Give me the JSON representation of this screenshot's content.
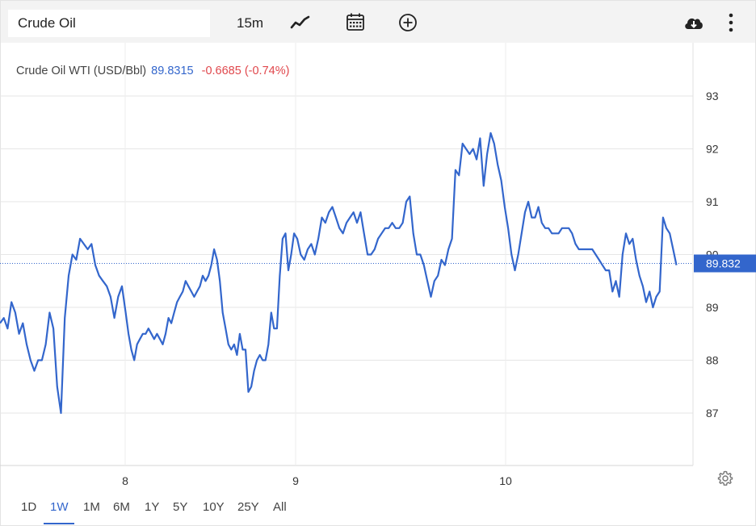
{
  "toolbar": {
    "symbol_value": "Crude Oil",
    "interval_label": "15m",
    "icons": [
      "line-chart-icon",
      "calendar-icon",
      "add-circle-icon",
      "cloud-download-icon",
      "more-vertical-icon"
    ]
  },
  "legend": {
    "name": "Crude Oil WTI (USD/Bbl)",
    "price": "89.8315",
    "change": "-0.6685 (-0.74%)"
  },
  "colors": {
    "line": "#3366cc",
    "negative": "#e0474c",
    "grid": "#e6e6e6"
  },
  "price_tag": "89.832",
  "range_tabs": {
    "items": [
      "1D",
      "1W",
      "1M",
      "6M",
      "1Y",
      "5Y",
      "10Y",
      "25Y",
      "All"
    ],
    "active": "1W"
  },
  "settings_icon": "gear-icon",
  "chart_data": {
    "type": "line",
    "title": "Crude Oil WTI (USD/Bbl)",
    "x_ticks": [
      "8",
      "9",
      "10"
    ],
    "y_ticks": [
      87,
      88,
      89,
      90,
      91,
      92,
      93
    ],
    "ylim": [
      86,
      93.5
    ],
    "xlim": [
      7.45,
      10.88
    ],
    "grid": true,
    "last_price": 89.832,
    "series": [
      {
        "values": [
          [
            7.45,
            88.7
          ],
          [
            7.47,
            88.8
          ],
          [
            7.48,
            88.6
          ],
          [
            7.5,
            89.1
          ],
          [
            7.51,
            88.9
          ],
          [
            7.52,
            88.5
          ],
          [
            7.53,
            88.7
          ],
          [
            7.54,
            88.3
          ],
          [
            7.56,
            88.0
          ],
          [
            7.57,
            87.8
          ],
          [
            7.58,
            88.0
          ],
          [
            7.6,
            88.0
          ],
          [
            7.61,
            88.3
          ],
          [
            7.63,
            88.9
          ],
          [
            7.64,
            88.6
          ],
          [
            7.65,
            87.5
          ],
          [
            7.67,
            87.0
          ],
          [
            7.68,
            88.8
          ],
          [
            7.7,
            89.6
          ],
          [
            7.71,
            90.0
          ],
          [
            7.72,
            89.9
          ],
          [
            7.73,
            90.3
          ],
          [
            7.74,
            90.2
          ],
          [
            7.75,
            90.1
          ],
          [
            7.76,
            90.2
          ],
          [
            7.77,
            89.8
          ],
          [
            7.78,
            89.6
          ],
          [
            7.8,
            89.5
          ],
          [
            7.81,
            89.4
          ],
          [
            7.82,
            89.2
          ],
          [
            7.83,
            88.8
          ],
          [
            7.84,
            89.2
          ],
          [
            7.86,
            89.4
          ],
          [
            7.87,
            88.9
          ],
          [
            7.88,
            88.5
          ],
          [
            7.89,
            88.2
          ],
          [
            7.9,
            88.0
          ],
          [
            7.91,
            88.3
          ],
          [
            7.92,
            88.4
          ],
          [
            7.93,
            88.5
          ],
          [
            7.95,
            88.5
          ],
          [
            7.96,
            88.6
          ],
          [
            7.97,
            88.5
          ],
          [
            7.98,
            88.4
          ],
          [
            7.99,
            88.5
          ],
          [
            8.0,
            88.4
          ],
          [
            8.02,
            88.3
          ],
          [
            8.03,
            88.5
          ],
          [
            8.04,
            88.8
          ],
          [
            8.05,
            88.7
          ],
          [
            8.06,
            88.9
          ],
          [
            8.08,
            89.1
          ],
          [
            8.09,
            89.2
          ],
          [
            8.1,
            89.3
          ],
          [
            8.12,
            89.5
          ],
          [
            8.13,
            89.4
          ],
          [
            8.14,
            89.3
          ],
          [
            8.15,
            89.2
          ],
          [
            8.17,
            89.3
          ],
          [
            8.18,
            89.4
          ],
          [
            8.2,
            89.6
          ],
          [
            8.21,
            89.5
          ],
          [
            8.22,
            89.6
          ],
          [
            8.23,
            89.8
          ],
          [
            8.24,
            90.1
          ],
          [
            8.25,
            89.9
          ],
          [
            8.26,
            89.5
          ],
          [
            8.28,
            88.9
          ],
          [
            8.29,
            88.6
          ],
          [
            8.3,
            88.3
          ],
          [
            8.32,
            88.2
          ],
          [
            8.33,
            88.3
          ],
          [
            8.35,
            88.1
          ],
          [
            8.36,
            88.5
          ],
          [
            8.37,
            88.2
          ],
          [
            8.39,
            88.2
          ],
          [
            8.4,
            87.4
          ],
          [
            8.41,
            87.5
          ],
          [
            8.42,
            87.8
          ],
          [
            8.43,
            88.0
          ],
          [
            8.45,
            88.1
          ],
          [
            8.46,
            88.0
          ],
          [
            8.48,
            88.0
          ],
          [
            8.49,
            88.3
          ],
          [
            8.5,
            88.9
          ],
          [
            8.51,
            88.6
          ],
          [
            8.53,
            88.6
          ],
          [
            8.54,
            89.6
          ],
          [
            8.55,
            90.3
          ],
          [
            8.56,
            90.4
          ],
          [
            8.57,
            89.7
          ],
          [
            8.58,
            90.0
          ],
          [
            8.59,
            90.4
          ],
          [
            8.6,
            90.3
          ],
          [
            8.61,
            90.0
          ],
          [
            8.62,
            89.9
          ],
          [
            8.63,
            90.1
          ],
          [
            8.64,
            90.2
          ],
          [
            8.65,
            90.0
          ],
          [
            8.66,
            90.3
          ],
          [
            8.67,
            90.7
          ],
          [
            8.68,
            90.6
          ],
          [
            8.69,
            90.8
          ],
          [
            8.7,
            90.9
          ],
          [
            8.72,
            90.7
          ],
          [
            8.73,
            90.5
          ],
          [
            8.74,
            90.4
          ],
          [
            8.75,
            90.6
          ],
          [
            8.77,
            90.7
          ],
          [
            8.78,
            90.8
          ],
          [
            8.79,
            90.6
          ],
          [
            8.8,
            90.8
          ],
          [
            8.81,
            90.4
          ],
          [
            8.82,
            90.0
          ],
          [
            8.84,
            90.0
          ],
          [
            8.85,
            90.1
          ],
          [
            8.86,
            90.3
          ],
          [
            8.87,
            90.4
          ],
          [
            8.88,
            90.5
          ],
          [
            8.9,
            90.5
          ],
          [
            8.91,
            90.6
          ],
          [
            8.92,
            90.5
          ],
          [
            8.94,
            90.5
          ],
          [
            8.95,
            90.6
          ],
          [
            8.96,
            91.0
          ],
          [
            8.97,
            91.1
          ],
          [
            8.98,
            90.4
          ],
          [
            8.99,
            90.0
          ],
          [
            9.0,
            90.0
          ],
          [
            9.01,
            89.8
          ],
          [
            9.02,
            89.5
          ],
          [
            9.03,
            89.2
          ],
          [
            9.04,
            89.5
          ],
          [
            9.05,
            89.6
          ],
          [
            9.06,
            89.9
          ],
          [
            9.07,
            89.8
          ],
          [
            9.08,
            90.1
          ],
          [
            9.09,
            90.3
          ],
          [
            9.1,
            91.6
          ],
          [
            9.11,
            91.5
          ],
          [
            9.12,
            92.1
          ],
          [
            9.13,
            92.0
          ],
          [
            9.14,
            91.9
          ],
          [
            9.15,
            92.0
          ],
          [
            9.16,
            91.8
          ],
          [
            9.17,
            92.2
          ],
          [
            9.18,
            91.3
          ],
          [
            9.19,
            91.9
          ],
          [
            9.2,
            92.3
          ],
          [
            9.21,
            92.1
          ],
          [
            9.22,
            91.7
          ],
          [
            9.24,
            91.4
          ],
          [
            9.25,
            90.9
          ],
          [
            9.26,
            90.5
          ],
          [
            9.27,
            90.0
          ],
          [
            9.28,
            89.7
          ],
          [
            9.29,
            90.0
          ],
          [
            9.3,
            90.4
          ],
          [
            9.31,
            90.8
          ],
          [
            9.32,
            91.0
          ],
          [
            9.33,
            90.7
          ],
          [
            9.34,
            90.7
          ],
          [
            9.36,
            90.9
          ],
          [
            9.37,
            90.6
          ],
          [
            9.38,
            90.5
          ],
          [
            9.4,
            90.5
          ],
          [
            9.41,
            90.4
          ],
          [
            9.42,
            90.4
          ],
          [
            9.44,
            90.4
          ],
          [
            9.45,
            90.5
          ],
          [
            9.46,
            90.5
          ],
          [
            9.47,
            90.5
          ],
          [
            9.48,
            90.4
          ],
          [
            9.5,
            90.2
          ],
          [
            9.51,
            90.1
          ],
          [
            9.52,
            90.1
          ],
          [
            9.54,
            90.1
          ],
          [
            9.55,
            90.1
          ],
          [
            9.56,
            90.1
          ],
          [
            9.57,
            90.0
          ],
          [
            9.58,
            89.9
          ],
          [
            9.59,
            89.8
          ],
          [
            9.6,
            89.7
          ],
          [
            9.61,
            89.7
          ],
          [
            9.62,
            89.3
          ],
          [
            9.63,
            89.5
          ],
          [
            9.64,
            89.2
          ],
          [
            9.65,
            90.0
          ],
          [
            9.66,
            90.4
          ],
          [
            9.67,
            90.2
          ],
          [
            9.68,
            90.3
          ],
          [
            9.7,
            89.9
          ],
          [
            9.71,
            89.6
          ],
          [
            9.72,
            89.4
          ],
          [
            9.73,
            89.1
          ],
          [
            9.74,
            89.3
          ],
          [
            9.75,
            89.0
          ],
          [
            9.76,
            89.2
          ],
          [
            9.77,
            89.3
          ],
          [
            9.78,
            90.7
          ],
          [
            9.79,
            90.5
          ],
          [
            9.8,
            90.4
          ],
          [
            9.81,
            90.1
          ],
          [
            9.82,
            89.8
          ]
        ]
      }
    ]
  }
}
